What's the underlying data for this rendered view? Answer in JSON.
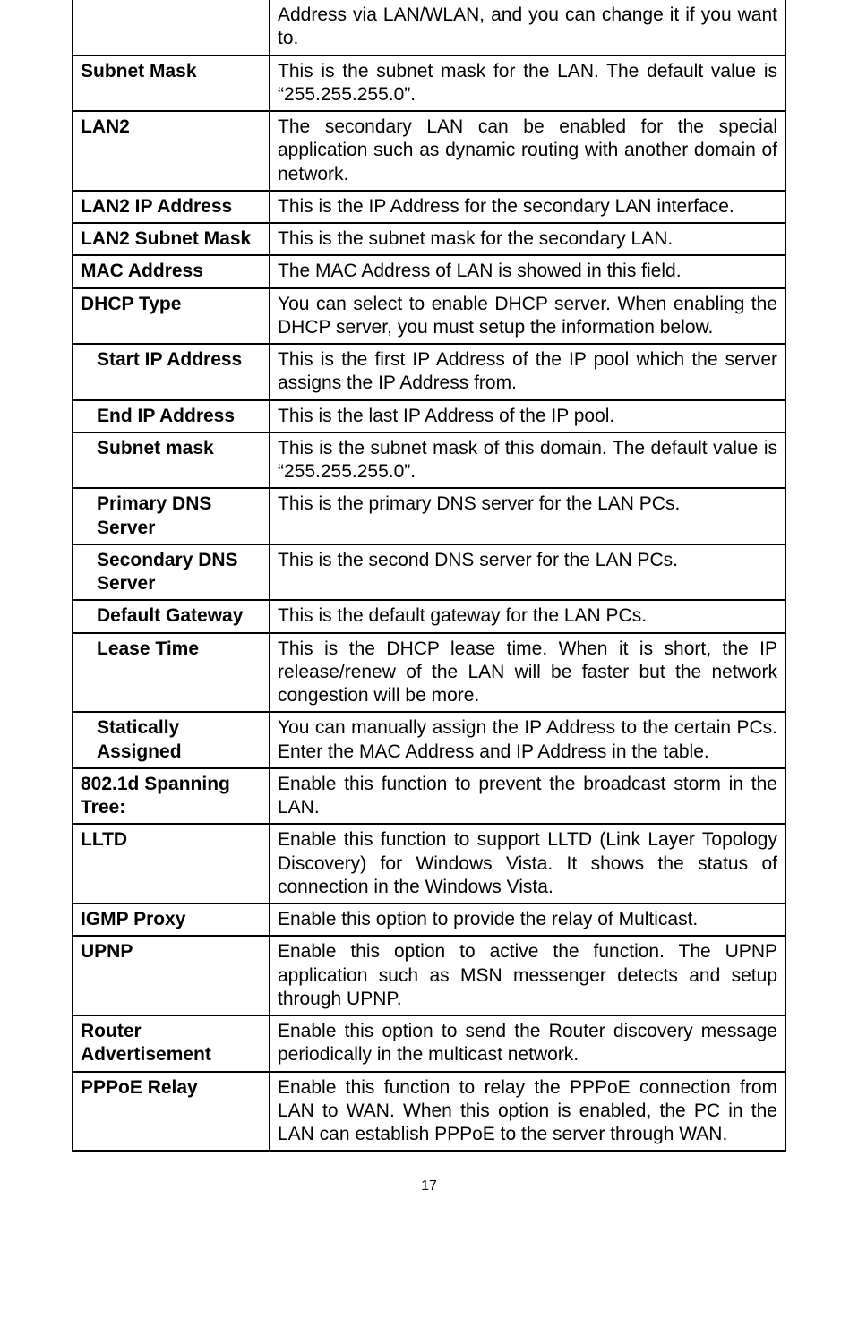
{
  "rows": [
    {
      "label": "",
      "indent": false,
      "desc": "Address via LAN/WLAN, and you can change it if you want to.",
      "label_empty": true
    },
    {
      "label": "Subnet Mask",
      "indent": false,
      "desc": "This is the subnet mask for the LAN. The default value is “255.255.255.0”."
    },
    {
      "label": "LAN2",
      "indent": false,
      "desc": "The secondary LAN can be enabled for the special application such as dynamic routing with another domain of network."
    },
    {
      "label": "LAN2 IP Address",
      "indent": false,
      "desc": "This is the IP Address for the secondary LAN interface."
    },
    {
      "label": "LAN2 Subnet Mask",
      "indent": false,
      "desc": "This is the subnet mask for the secondary LAN."
    },
    {
      "label": "MAC Address",
      "indent": false,
      "desc": "The MAC Address of LAN is showed in this field."
    },
    {
      "label": "DHCP Type",
      "indent": false,
      "desc": "You can select to enable DHCP server. When enabling the DHCP server, you must setup the information below."
    },
    {
      "label": "Start IP Address",
      "indent": true,
      "desc": "This is the first IP Address of the IP pool which the server assigns the IP Address from."
    },
    {
      "label": "End IP Address",
      "indent": true,
      "desc": "This is the last IP Address of the IP pool."
    },
    {
      "label": "Subnet mask",
      "indent": true,
      "desc": "This is the subnet mask of this domain. The default value is “255.255.255.0”."
    },
    {
      "label": "Primary DNS Server",
      "indent": true,
      "desc": "This is the primary DNS server for the LAN PCs."
    },
    {
      "label": "Secondary DNS Server",
      "indent": true,
      "desc": "This is the second DNS server for the LAN PCs."
    },
    {
      "label": "Default Gateway",
      "indent": true,
      "desc": "This is the default gateway for the LAN PCs."
    },
    {
      "label": "Lease Time",
      "indent": true,
      "desc": "This is the DHCP lease time. When it is short, the IP release/renew of the LAN will be faster but the network congestion will be more."
    },
    {
      "label": "Statically Assigned",
      "indent": true,
      "desc": "You can manually assign the IP Address to the certain PCs. Enter the MAC Address and IP Address in the table."
    },
    {
      "label": "802.1d Spanning Tree:",
      "indent": false,
      "desc": "Enable this function to prevent the broadcast storm in the LAN."
    },
    {
      "label": "LLTD",
      "indent": false,
      "desc": "Enable this function to support LLTD (Link Layer Topology Discovery) for Windows Vista. It shows the status of connection in the Windows Vista."
    },
    {
      "label": "IGMP Proxy",
      "indent": false,
      "desc": "Enable this option to provide the relay of Multicast."
    },
    {
      "label": "UPNP",
      "indent": false,
      "desc": "Enable this option to active the function. The UPNP application such as MSN messenger detects and setup through UPNP."
    },
    {
      "label": "Router Advertisement",
      "indent": false,
      "desc": "Enable this option to send the Router discovery message periodically in the multicast network."
    },
    {
      "label": "PPPoE Relay",
      "indent": false,
      "desc": "Enable this function to relay the PPPoE connection from LAN to WAN. When this option is enabled, the PC in the LAN can establish PPPoE to the server through WAN."
    }
  ],
  "page_number": "17"
}
